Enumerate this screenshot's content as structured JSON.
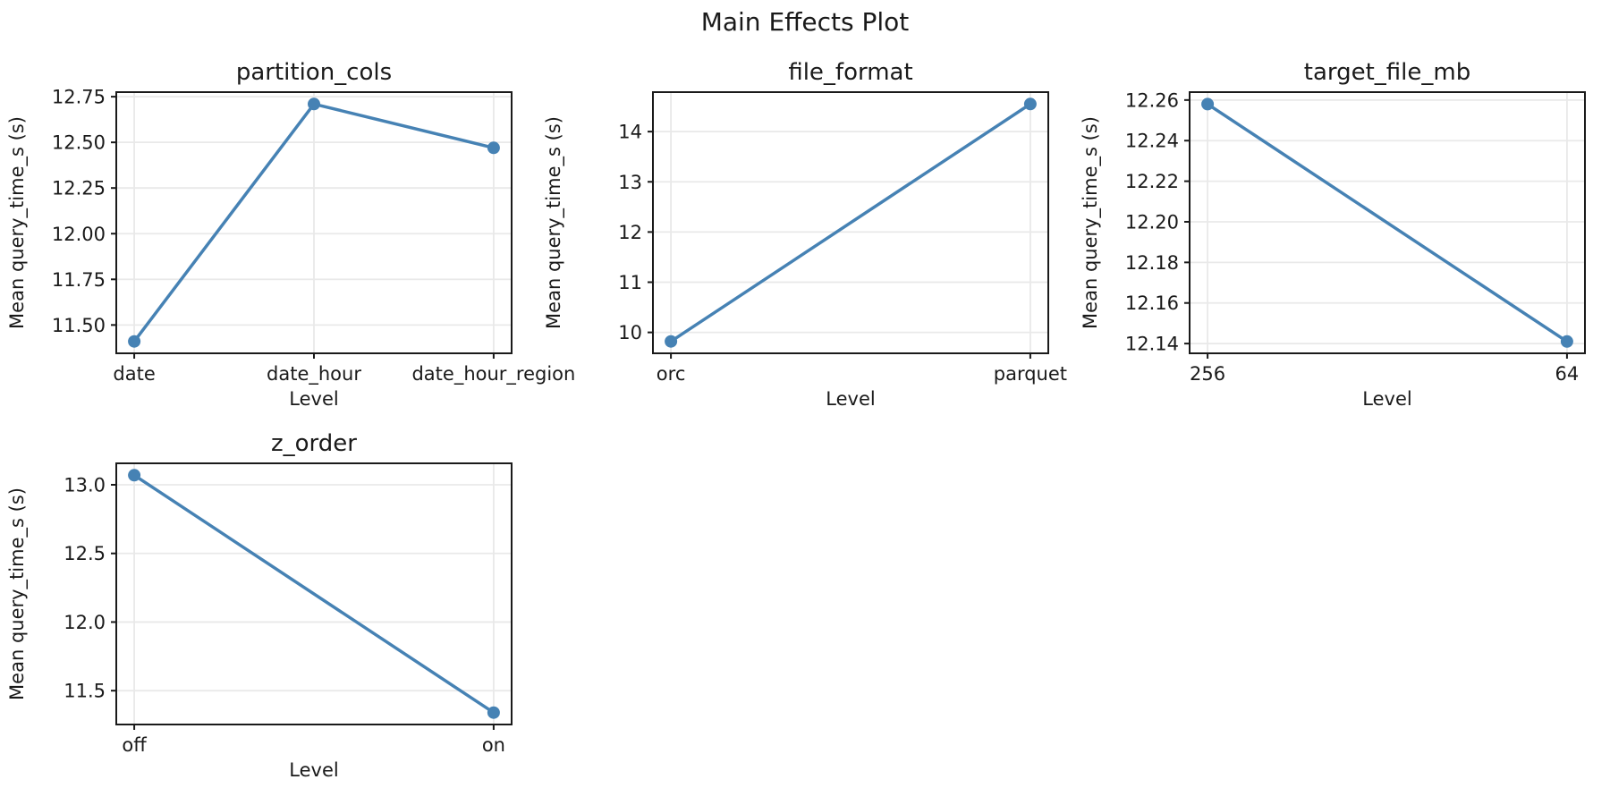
{
  "figure": {
    "suptitle": "Main Effects Plot",
    "line_color": "#4682B4",
    "grid_color": "#e9e9e9",
    "spine_color": "#1a1a1a",
    "text_color": "#1a1a1a"
  },
  "chart_data": [
    {
      "type": "line",
      "title": "partition_cols",
      "xlabel": "Level",
      "ylabel": "Mean query_time_s (s)",
      "categories": [
        "date",
        "date_hour",
        "date_hour_region"
      ],
      "values": [
        11.41,
        12.71,
        12.47
      ],
      "yticks": [
        11.5,
        11.75,
        12.0,
        12.25,
        12.5,
        12.75
      ],
      "ytick_labels": [
        "11.50",
        "11.75",
        "12.00",
        "12.25",
        "12.50",
        "12.75"
      ],
      "ylim": [
        11.345,
        12.775
      ],
      "grid": true,
      "marker": "circle",
      "legend_position": "none"
    },
    {
      "type": "line",
      "title": "file_format",
      "xlabel": "Level",
      "ylabel": "Mean query_time_s (s)",
      "categories": [
        "orc",
        "parquet"
      ],
      "values": [
        9.82,
        14.55
      ],
      "yticks": [
        10,
        11,
        12,
        13,
        14
      ],
      "ytick_labels": [
        "10",
        "11",
        "12",
        "13",
        "14"
      ],
      "ylim": [
        9.5835,
        14.7865
      ],
      "grid": true,
      "marker": "circle",
      "legend_position": "none"
    },
    {
      "type": "line",
      "title": "target_file_mb",
      "xlabel": "Level",
      "ylabel": "Mean query_time_s (s)",
      "categories": [
        "256",
        "64"
      ],
      "values": [
        12.258,
        12.141
      ],
      "yticks": [
        12.14,
        12.16,
        12.18,
        12.2,
        12.22,
        12.24,
        12.26
      ],
      "ytick_labels": [
        "12.14",
        "12.16",
        "12.18",
        "12.20",
        "12.22",
        "12.24",
        "12.26"
      ],
      "ylim": [
        12.1352,
        12.2639
      ],
      "grid": true,
      "marker": "circle",
      "legend_position": "none"
    },
    {
      "type": "line",
      "title": "z_order",
      "xlabel": "Level",
      "ylabel": "Mean query_time_s (s)",
      "categories": [
        "off",
        "on"
      ],
      "values": [
        13.07,
        11.34
      ],
      "yticks": [
        11.5,
        12.0,
        12.5,
        13.0
      ],
      "ytick_labels": [
        "11.5",
        "12.0",
        "12.5",
        "13.0"
      ],
      "ylim": [
        11.2535,
        13.1565
      ],
      "grid": true,
      "marker": "circle",
      "legend_position": "none"
    }
  ]
}
